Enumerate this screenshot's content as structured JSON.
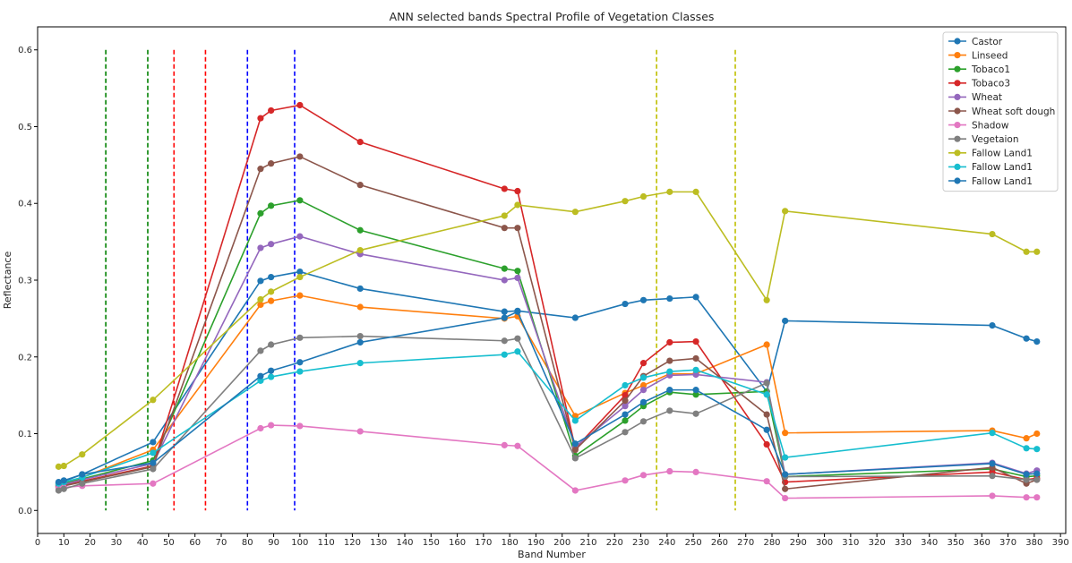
{
  "chart_data": {
    "type": "line",
    "title": "ANN  selected bands Spectral Profile of Vegetation Classes",
    "xlabel": "Band Number",
    "ylabel": "Reflectance",
    "xlim": [
      0,
      392
    ],
    "ylim": [
      -0.03,
      0.63
    ],
    "xticks": [
      0,
      10,
      20,
      30,
      40,
      50,
      60,
      70,
      80,
      90,
      100,
      110,
      120,
      130,
      140,
      150,
      160,
      170,
      180,
      190,
      200,
      210,
      220,
      230,
      240,
      250,
      260,
      270,
      280,
      290,
      300,
      310,
      320,
      330,
      340,
      350,
      360,
      370,
      380,
      390
    ],
    "yticks": [
      0.0,
      0.1,
      0.2,
      0.3,
      0.4,
      0.5,
      0.6
    ],
    "grid": false,
    "legend_position": "top-right",
    "x": [
      8,
      10,
      17,
      44,
      85,
      89,
      100,
      123,
      178,
      183,
      205,
      224,
      231,
      241,
      251,
      278,
      285,
      364,
      377,
      381
    ],
    "series": [
      {
        "name": "Castor",
        "color": "#1f77b4",
        "values": [
          0.036,
          0.038,
          0.047,
          0.089,
          0.299,
          0.304,
          0.311,
          0.289,
          0.259,
          0.26,
          0.251,
          0.269,
          0.274,
          0.276,
          0.278,
          0.155,
          0.247,
          0.241,
          0.224,
          0.22
        ]
      },
      {
        "name": "Linseed",
        "color": "#ff7f0e",
        "values": [
          0.034,
          0.036,
          0.043,
          0.079,
          0.268,
          0.273,
          0.28,
          0.265,
          0.25,
          0.253,
          0.123,
          0.153,
          0.163,
          0.178,
          0.178,
          0.216,
          0.101,
          0.104,
          0.094,
          0.1
        ]
      },
      {
        "name": "Tobaco1",
        "color": "#2ca02c",
        "values": [
          0.033,
          0.035,
          0.041,
          0.065,
          0.387,
          0.397,
          0.404,
          0.365,
          0.315,
          0.312,
          0.071,
          0.117,
          0.136,
          0.154,
          0.151,
          0.155,
          0.044,
          0.054,
          0.044,
          0.045
        ]
      },
      {
        "name": "Tobaco3",
        "color": "#d62728",
        "values": [
          0.031,
          0.033,
          0.038,
          0.058,
          0.511,
          0.521,
          0.528,
          0.48,
          0.419,
          0.416,
          0.081,
          0.15,
          0.192,
          0.219,
          0.22,
          0.086,
          0.037,
          0.05,
          0.04,
          0.042
        ]
      },
      {
        "name": "Wheat",
        "color": "#9467bd",
        "values": [
          0.032,
          0.034,
          0.04,
          0.061,
          0.342,
          0.347,
          0.357,
          0.334,
          0.3,
          0.303,
          0.083,
          0.136,
          0.157,
          0.176,
          0.177,
          0.167,
          0.047,
          0.062,
          0.048,
          0.052
        ]
      },
      {
        "name": "Wheat soft dough",
        "color": "#8c564b",
        "values": [
          0.03,
          0.032,
          0.037,
          0.057,
          0.445,
          0.452,
          0.461,
          0.424,
          0.368,
          0.368,
          0.079,
          0.143,
          0.175,
          0.195,
          0.198,
          0.125,
          0.028,
          0.056,
          0.035,
          0.04
        ]
      },
      {
        "name": "Shadow",
        "color": "#e377c2",
        "values": [
          0.029,
          0.03,
          0.032,
          0.035,
          0.107,
          0.111,
          0.11,
          0.103,
          0.085,
          0.084,
          0.026,
          0.039,
          0.046,
          0.051,
          0.05,
          0.038,
          0.016,
          0.019,
          0.017,
          0.017
        ]
      },
      {
        "name": "Vegetaion",
        "color": "#7f7f7f",
        "values": [
          0.026,
          0.028,
          0.035,
          0.054,
          0.208,
          0.216,
          0.225,
          0.227,
          0.221,
          0.224,
          0.068,
          0.102,
          0.116,
          0.13,
          0.126,
          0.166,
          0.044,
          0.045,
          0.04,
          0.04
        ]
      },
      {
        "name": "Fallow Land1",
        "color": "#bcbd22",
        "values": [
          0.057,
          0.058,
          0.073,
          0.144,
          0.275,
          0.285,
          0.304,
          0.339,
          0.384,
          0.398,
          0.389,
          0.403,
          0.409,
          0.415,
          0.415,
          0.274,
          0.39,
          0.36,
          0.337,
          0.337
        ]
      },
      {
        "name": "Fallow Land1",
        "color": "#17becf",
        "values": [
          0.035,
          0.037,
          0.043,
          0.075,
          0.169,
          0.174,
          0.181,
          0.192,
          0.203,
          0.207,
          0.117,
          0.163,
          0.173,
          0.181,
          0.183,
          0.151,
          0.069,
          0.101,
          0.081,
          0.08
        ]
      },
      {
        "name": "Fallow Land1",
        "color": "#1f77b4",
        "values": [
          0.037,
          0.039,
          0.047,
          0.062,
          0.175,
          0.182,
          0.193,
          0.219,
          0.251,
          0.259,
          0.087,
          0.125,
          0.141,
          0.157,
          0.157,
          0.105,
          0.047,
          0.061,
          0.047,
          0.048
        ]
      }
    ],
    "vlines": [
      {
        "x": 26,
        "color": "#008000"
      },
      {
        "x": 42,
        "color": "#008000"
      },
      {
        "x": 52,
        "color": "#ff0000"
      },
      {
        "x": 64,
        "color": "#ff0000"
      },
      {
        "x": 80,
        "color": "#0000ff"
      },
      {
        "x": 98,
        "color": "#0000ff"
      },
      {
        "x": 236,
        "color": "#bfbf00"
      },
      {
        "x": 266,
        "color": "#bfbf00"
      }
    ]
  }
}
